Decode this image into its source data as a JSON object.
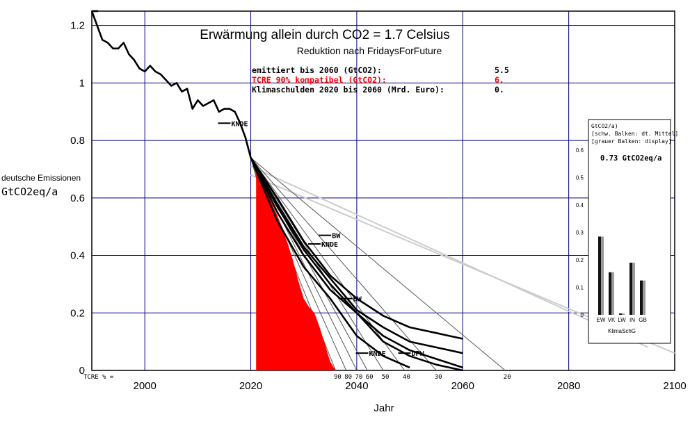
{
  "chart_data": {
    "type": "line",
    "title": "Erwärmung allein durch CO2 =   1.7  Celsius",
    "subtitle": "Reduktion nach FridaysForFuture",
    "xlabel": "Jahr",
    "ylabel_line1": "deutsche Emissionen",
    "ylabel_line2": "GtCO2eq/a",
    "xlim": [
      1990,
      2100
    ],
    "ylim": [
      0,
      1.25
    ],
    "x_ticks": [
      "2000",
      "2020",
      "2040",
      "2060",
      "2080",
      "2100"
    ],
    "y_ticks": [
      "0",
      "0.2",
      "0.4",
      "0.6",
      "0.8",
      "1",
      "1.2"
    ],
    "info": [
      {
        "label": "emittiert bis 2060 (GtCO2):",
        "value": "5.5",
        "color": "#000000"
      },
      {
        "label": "TCRE 90% kompatibel (GtCO2):",
        "value": "6.",
        "color": "#ff0000"
      },
      {
        "label": "Klimaschulden 2020 bis 2060 (Mrd. Euro):",
        "value": "0.",
        "color": "#000000"
      }
    ],
    "tcre_label": "TCRE % =",
    "tcre_values": [
      "90",
      "80",
      "70",
      "60",
      "50",
      "40",
      "30",
      "20"
    ],
    "historical_series": {
      "name": "deutsche Emissionen",
      "x": [
        1990,
        1991,
        1992,
        1993,
        1994,
        1995,
        1996,
        1997,
        1998,
        1999,
        2000,
        2001,
        2002,
        2003,
        2004,
        2005,
        2006,
        2007,
        2008,
        2009,
        2010,
        2011,
        2012,
        2013,
        2014,
        2015,
        2016,
        2017,
        2018,
        2019,
        2020
      ],
      "y": [
        1.25,
        1.2,
        1.15,
        1.14,
        1.12,
        1.12,
        1.14,
        1.1,
        1.08,
        1.05,
        1.04,
        1.06,
        1.04,
        1.03,
        1.01,
        0.99,
        1.0,
        0.97,
        0.98,
        0.91,
        0.94,
        0.92,
        0.93,
        0.94,
        0.9,
        0.91,
        0.91,
        0.9,
        0.86,
        0.81,
        0.74
      ]
    },
    "red_area": {
      "x": [
        2021,
        2021,
        2022,
        2023,
        2024,
        2025,
        2026,
        2027,
        2028,
        2029,
        2030,
        2031,
        2032,
        2033,
        2034,
        2035,
        2036
      ],
      "y": [
        0,
        0.7,
        0.66,
        0.62,
        0.58,
        0.54,
        0.49,
        0.44,
        0.38,
        0.31,
        0.25,
        0.22,
        0.2,
        0.15,
        0.09,
        0.03,
        0
      ]
    },
    "tcre_fan_end_years": [
      2036,
      2038,
      2040,
      2042,
      2045,
      2049,
      2055,
      2068
    ],
    "tcre_fan_extra_end_years": [
      2031,
      2033
    ],
    "gray_lines": [
      {
        "x": [
          2020,
          2095
        ],
        "y": [
          0.71,
          0.08
        ]
      },
      {
        "x": [
          2020,
          2100
        ],
        "y": [
          0.68,
          0.06
        ]
      }
    ],
    "scenarios": [
      {
        "name": "s1",
        "x": [
          2020,
          2025,
          2030,
          2035,
          2040,
          2045,
          2050,
          2055,
          2060
        ],
        "y": [
          0.74,
          0.6,
          0.45,
          0.33,
          0.25,
          0.19,
          0.15,
          0.13,
          0.11
        ]
      },
      {
        "name": "s2",
        "x": [
          2020,
          2025,
          2030,
          2035,
          2040,
          2045,
          2050,
          2055,
          2060
        ],
        "y": [
          0.74,
          0.58,
          0.43,
          0.32,
          0.21,
          0.15,
          0.1,
          0.08,
          0.06
        ]
      },
      {
        "name": "s3",
        "x": [
          2020,
          2025,
          2030,
          2035,
          2040,
          2045,
          2050,
          2055,
          2060
        ],
        "y": [
          0.74,
          0.57,
          0.42,
          0.3,
          0.2,
          0.12,
          0.07,
          0.04,
          0.01
        ]
      },
      {
        "name": "s4",
        "x": [
          2020,
          2025,
          2030,
          2035,
          2040,
          2045,
          2050,
          2055,
          2060
        ],
        "y": [
          0.74,
          0.55,
          0.4,
          0.28,
          0.2,
          0.1,
          0.05,
          0.02,
          0.0
        ]
      },
      {
        "name": "s5",
        "x": [
          2020,
          2025,
          2030,
          2035,
          2040,
          2045,
          2050
        ],
        "y": [
          0.74,
          0.52,
          0.36,
          0.25,
          0.12,
          0.05,
          0.01
        ]
      }
    ],
    "markers": [
      {
        "label": "KNDE",
        "x": 2015,
        "y": 0.86
      },
      {
        "label": "KNDE",
        "x": 2032,
        "y": 0.44
      },
      {
        "label": "KNDE",
        "x": 2041,
        "y": 0.06
      },
      {
        "label": "BW",
        "x": 2034,
        "y": 0.47
      },
      {
        "label": "BW",
        "x": 2038,
        "y": 0.25
      },
      {
        "label": "DPW",
        "x": 2049,
        "y": 0.06
      }
    ],
    "inset": {
      "header": [
        "GtCO2/a)",
        "[schw. Balken: dt. Mittel]",
        "[grauer Balken: display]"
      ],
      "value": "0.73 GtCO2eq/a",
      "ylim": [
        0,
        0.6
      ],
      "y_ticks": [
        "0",
        "0.1",
        "0.2",
        "0.3",
        "0.4",
        "0.5",
        "0.6"
      ],
      "categories": [
        "EW",
        "VK",
        "LW",
        "IN",
        "GB"
      ],
      "black": [
        0.285,
        0.155,
        0.005,
        0.19,
        0.125
      ],
      "gray": [
        0.285,
        0.155,
        0.005,
        0.19,
        0.125
      ],
      "xlabel": "KlimaSchG"
    },
    "colors": {
      "axis": "#000000",
      "grid": "#000080",
      "red": "#ff0000",
      "fan": "#555555",
      "gray_line": "#cccccc",
      "bar_black": "#111111",
      "bar_gray": "#9a9a9a"
    }
  }
}
